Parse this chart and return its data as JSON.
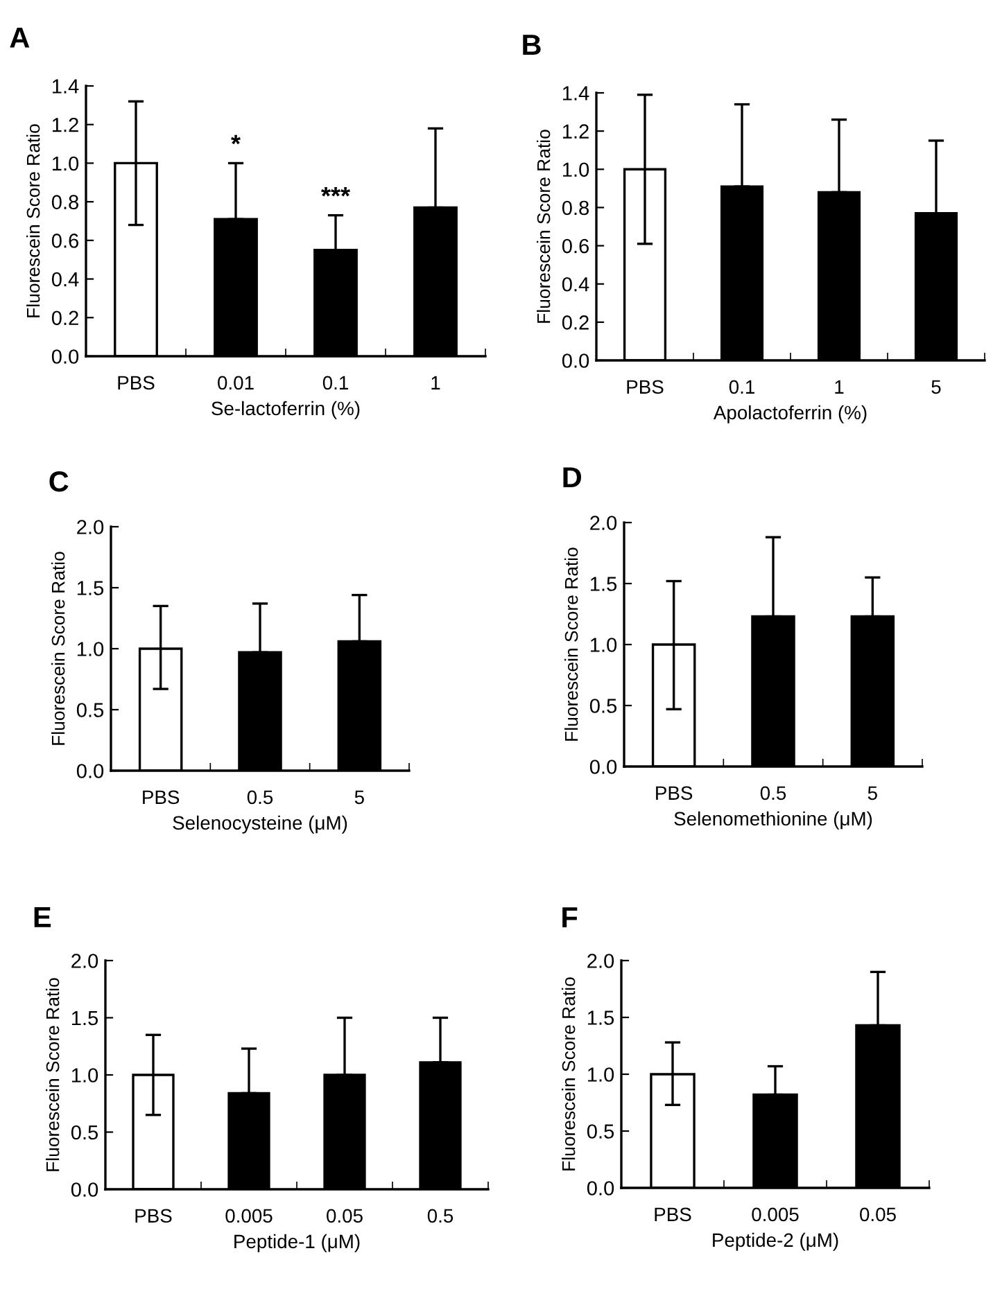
{
  "chart_data": [
    {
      "type": "bar",
      "title": "A",
      "xlabel": "Se-lactoferrin (%)",
      "ylabel": "Fluorescein Score Ratio",
      "categories": [
        "PBS",
        "0.01",
        "0.1",
        "1"
      ],
      "values": [
        1.0,
        0.71,
        0.55,
        0.77
      ],
      "colors": [
        "#ffffff",
        "#000000",
        "#000000",
        "#000000"
      ],
      "errors": [
        [
          0.68,
          1.32
        ],
        [
          0.71,
          1.0
        ],
        [
          0.55,
          0.73
        ],
        [
          0.77,
          1.18
        ]
      ],
      "ylim": [
        0,
        1.4
      ],
      "yticks": [
        {
          "value": 0,
          "label": "0.0"
        },
        {
          "value": 0.2,
          "label": "0.2"
        },
        {
          "value": 0.4,
          "label": "0.4"
        },
        {
          "value": 0.6,
          "label": "0.6"
        },
        {
          "value": 0.8,
          "label": "0.8"
        },
        {
          "value": 1.0,
          "label": "1.0"
        },
        {
          "value": 1.2,
          "label": "1.2"
        },
        {
          "value": 1.4,
          "label": "1.4"
        }
      ],
      "annotations": [
        {
          "text": "*",
          "x": "0.01",
          "y": 1.03
        },
        {
          "text": "***",
          "x": "0.1",
          "y": 0.76
        }
      ]
    },
    {
      "type": "bar",
      "title": "B",
      "xlabel": "Apolactoferrin (%)",
      "ylabel": "Fluorescein Score Ratio",
      "categories": [
        "PBS",
        "0.1",
        "1",
        "5"
      ],
      "values": [
        1.0,
        0.91,
        0.88,
        0.77
      ],
      "colors": [
        "#ffffff",
        "#000000",
        "#000000",
        "#000000"
      ],
      "errors": [
        [
          0.61,
          1.39
        ],
        [
          0.91,
          1.34
        ],
        [
          0.88,
          1.26
        ],
        [
          0.77,
          1.15
        ]
      ],
      "ylim": [
        0,
        1.4
      ],
      "yticks": [
        {
          "value": 0,
          "label": "0.0"
        },
        {
          "value": 0.2,
          "label": "0.2"
        },
        {
          "value": 0.4,
          "label": "0.4"
        },
        {
          "value": 0.6,
          "label": "0.6"
        },
        {
          "value": 0.8,
          "label": "0.8"
        },
        {
          "value": 1.0,
          "label": "1.0"
        },
        {
          "value": 1.2,
          "label": "1.2"
        },
        {
          "value": 1.4,
          "label": "1.4"
        }
      ]
    },
    {
      "type": "bar",
      "title": "C",
      "xlabel": "Selenocysteine (μM)",
      "ylabel": "Fluorescein Score Ratio",
      "categories": [
        "PBS",
        "0.5",
        "5"
      ],
      "values": [
        1.0,
        0.97,
        1.06
      ],
      "colors": [
        "#ffffff",
        "#000000",
        "#000000"
      ],
      "errors": [
        [
          0.67,
          1.35
        ],
        [
          0.97,
          1.37
        ],
        [
          1.06,
          1.44
        ]
      ],
      "ylim": [
        0,
        2.0
      ],
      "yticks": [
        {
          "value": 0,
          "label": "0.0"
        },
        {
          "value": 0.5,
          "label": "0.5"
        },
        {
          "value": 1.0,
          "label": "1.0"
        },
        {
          "value": 1.5,
          "label": "1.5"
        },
        {
          "value": 2.0,
          "label": "2.0"
        }
      ]
    },
    {
      "type": "bar",
      "title": "D",
      "xlabel": "Selenomethionine (μM)",
      "ylabel": "Fluorescein Score Ratio",
      "categories": [
        "PBS",
        "0.5",
        "5"
      ],
      "values": [
        1.0,
        1.23,
        1.23
      ],
      "colors": [
        "#ffffff",
        "#000000",
        "#000000"
      ],
      "errors": [
        [
          0.47,
          1.52
        ],
        [
          1.23,
          1.88
        ],
        [
          1.23,
          1.55
        ]
      ],
      "ylim": [
        0,
        2.0
      ],
      "yticks": [
        {
          "value": 0,
          "label": "0.0"
        },
        {
          "value": 0.5,
          "label": "0.5"
        },
        {
          "value": 1.0,
          "label": "1.0"
        },
        {
          "value": 1.5,
          "label": "1.5"
        },
        {
          "value": 2.0,
          "label": "2.0"
        }
      ]
    },
    {
      "type": "bar",
      "title": "E",
      "xlabel": "Peptide-1 (μM)",
      "ylabel": "Fluorescein Score Ratio",
      "categories": [
        "PBS",
        "0.005",
        "0.05",
        "0.5"
      ],
      "values": [
        1.0,
        0.84,
        1.0,
        1.11
      ],
      "colors": [
        "#ffffff",
        "#000000",
        "#000000",
        "#000000"
      ],
      "errors": [
        [
          0.65,
          1.35
        ],
        [
          0.84,
          1.23
        ],
        [
          1.0,
          1.5
        ],
        [
          1.11,
          1.5
        ]
      ],
      "ylim": [
        0,
        2.0
      ],
      "yticks": [
        {
          "value": 0,
          "label": "0.0"
        },
        {
          "value": 0.5,
          "label": "0.5"
        },
        {
          "value": 1.0,
          "label": "1.0"
        },
        {
          "value": 1.5,
          "label": "1.5"
        },
        {
          "value": 2.0,
          "label": "2.0"
        }
      ]
    },
    {
      "type": "bar",
      "title": "F",
      "xlabel": "Peptide-2 (μM)",
      "ylabel": "Fluorescein Score Ratio",
      "categories": [
        "PBS",
        "0.005",
        "0.05"
      ],
      "values": [
        1.0,
        0.82,
        1.43
      ],
      "colors": [
        "#ffffff",
        "#000000",
        "#000000"
      ],
      "errors": [
        [
          0.73,
          1.28
        ],
        [
          0.82,
          1.07
        ],
        [
          1.43,
          1.9
        ]
      ],
      "ylim": [
        0,
        2.0
      ],
      "yticks": [
        {
          "value": 0,
          "label": "0.0"
        },
        {
          "value": 0.5,
          "label": "0.5"
        },
        {
          "value": 1.0,
          "label": "1.0"
        },
        {
          "value": 1.5,
          "label": "1.5"
        },
        {
          "value": 2.0,
          "label": "2.0"
        }
      ]
    }
  ]
}
